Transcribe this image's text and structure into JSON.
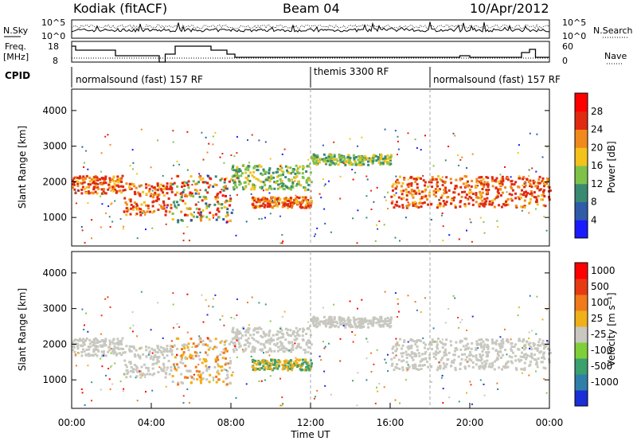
{
  "header": {
    "site": "Kodiak (fitACF)",
    "beam": "Beam 04",
    "date": "10/Apr/2012"
  },
  "top_panels": {
    "nsky_label": "N.Sky",
    "nsky_ticks": [
      "10^5",
      "10^0"
    ],
    "nsky_right_ticks": [
      "10^5",
      "10^0"
    ],
    "nsearch_label": "N.Search",
    "freq_label": "Freq.",
    "freq_unit": "[MHz]",
    "freq_ticks": [
      "18",
      "8"
    ],
    "nave_ticks": [
      "60",
      "0"
    ],
    "nave_label": "Nave",
    "cpid_label": "CPID",
    "cpid_segments": [
      {
        "label": "normalsound (fast) 157 RF",
        "start": 0,
        "end": 12
      },
      {
        "label": "themis 3300 RF",
        "start": 12,
        "end": 18
      },
      {
        "label": "normalsound (fast) 157 RF",
        "start": 18,
        "end": 24
      }
    ]
  },
  "chart_data": [
    {
      "type": "heatmap",
      "name": "power",
      "ylabel": "Slant Range [km]",
      "yticks": [
        1000,
        2000,
        3000,
        4000
      ],
      "ylim": [
        200,
        4600
      ],
      "xlim": [
        0,
        24
      ],
      "colorbar": {
        "label": "Power [dB]",
        "ticks": [
          "28",
          "24",
          "20",
          "16",
          "12",
          "8",
          "4"
        ],
        "colors": [
          "#1a1aff",
          "#2f5ba8",
          "#3a8a72",
          "#7fc24a",
          "#f3c21b",
          "#f08a1c",
          "#e02a12",
          "#ff0000"
        ]
      },
      "bands": [
        {
          "x": [
            0,
            2.5
          ],
          "y": [
            1700,
            2200
          ],
          "level": "high"
        },
        {
          "x": [
            2.5,
            5
          ],
          "y": [
            1100,
            2000
          ],
          "level": "high"
        },
        {
          "x": [
            5,
            8
          ],
          "y": [
            900,
            2200
          ],
          "level": "mixed"
        },
        {
          "x": [
            8,
            12
          ],
          "y": [
            1800,
            2500
          ],
          "level": "mid"
        },
        {
          "x": [
            9,
            12
          ],
          "y": [
            1300,
            1600
          ],
          "level": "high"
        },
        {
          "x": [
            12,
            16
          ],
          "y": [
            2500,
            2800
          ],
          "level": "mid"
        },
        {
          "x": [
            16,
            24
          ],
          "y": [
            1300,
            2200
          ],
          "level": "high"
        }
      ]
    },
    {
      "type": "heatmap",
      "name": "velocity",
      "ylabel": "Slant Range [km]",
      "yticks": [
        1000,
        2000,
        3000,
        4000
      ],
      "ylim": [
        200,
        4600
      ],
      "xlim": [
        0,
        24
      ],
      "colorbar": {
        "label": "Velocity [m s⁻¹]",
        "ticks": [
          "1000",
          "500",
          "100",
          "25",
          "-25",
          "-100",
          "-500",
          "-1000"
        ],
        "colors": [
          "#1a2fd6",
          "#2f7fa8",
          "#3aa06e",
          "#7fcf3a",
          "#c8c8c0",
          "#f0b01a",
          "#f07a1c",
          "#e83a12",
          "#ff0000"
        ]
      }
    }
  ],
  "x_axis": {
    "label": "Time UT",
    "ticks": [
      "00:00",
      "04:00",
      "08:00",
      "12:00",
      "16:00",
      "20:00",
      "00:00"
    ]
  }
}
